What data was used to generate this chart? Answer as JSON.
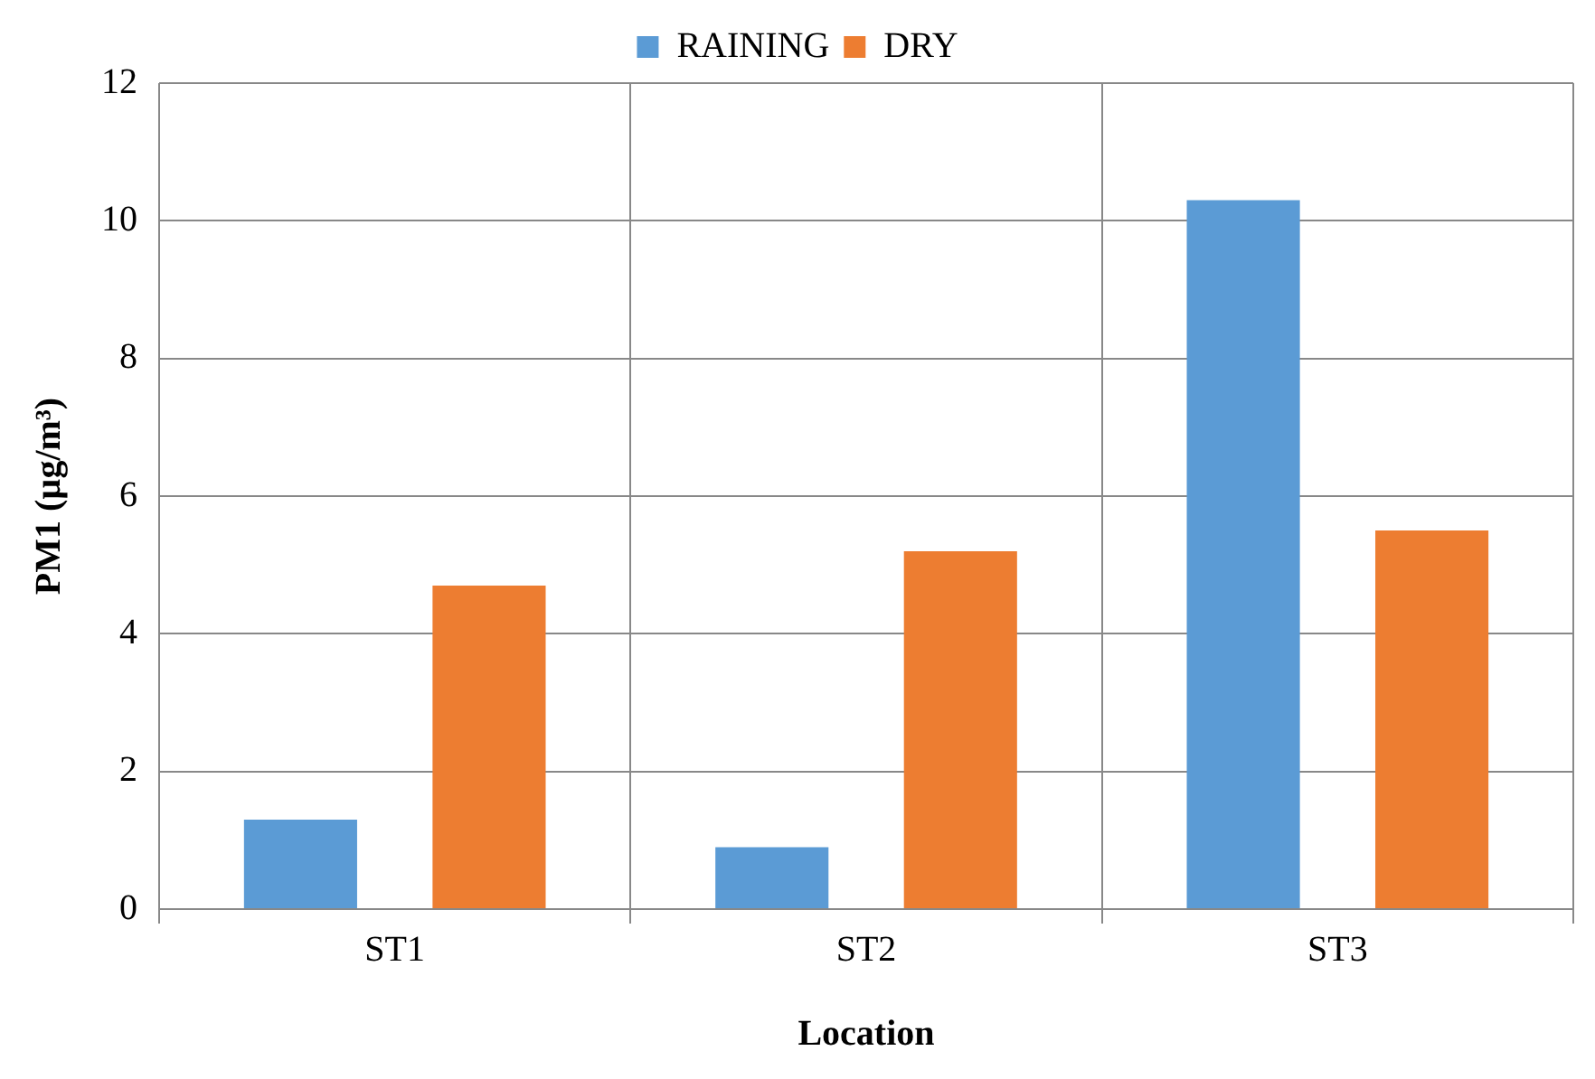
{
  "chart_data": {
    "type": "bar",
    "xlabel": "Location",
    "ylabel": "PM1 (µg/m³)",
    "categories": [
      "ST1",
      "ST2",
      "ST3"
    ],
    "series": [
      {
        "name": "RAINING",
        "color": "#5b9bd5",
        "values": [
          1.3,
          0.9,
          10.3
        ]
      },
      {
        "name": "DRY",
        "color": "#ed7d31",
        "values": [
          4.7,
          5.2,
          5.5
        ]
      }
    ],
    "ylim": [
      0,
      12
    ],
    "yticks": [
      0,
      2,
      4,
      6,
      8,
      10,
      12
    ],
    "grid": true,
    "legend": "top"
  }
}
